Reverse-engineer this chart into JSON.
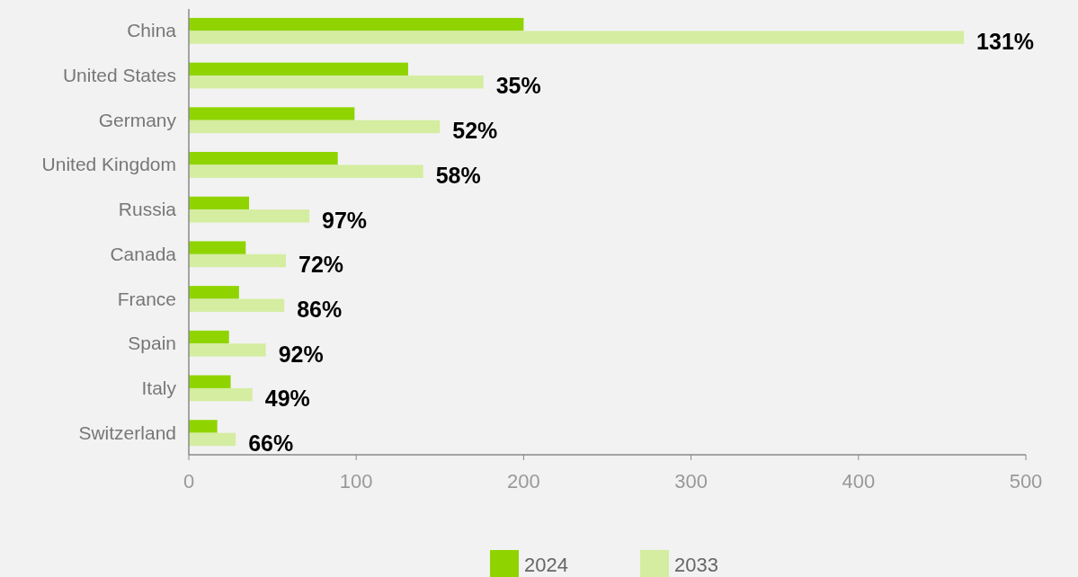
{
  "chart_data": {
    "type": "bar",
    "orientation": "horizontal",
    "categories": [
      "China",
      "United States",
      "Germany",
      "United Kingdom",
      "Russia",
      "Canada",
      "France",
      "Spain",
      "Italy",
      "Switzerland"
    ],
    "series": [
      {
        "name": "2024",
        "color": "#8fd400",
        "values": [
          200,
          131,
          99,
          89,
          36,
          34,
          30,
          24,
          25,
          17
        ]
      },
      {
        "name": "2033",
        "color": "#d4eda0",
        "values": [
          463,
          176,
          150,
          140,
          72,
          58,
          57,
          46,
          38,
          28
        ]
      }
    ],
    "xlim": [
      0,
      500
    ],
    "xticks": [
      0,
      100,
      200,
      300,
      400,
      500
    ],
    "grid": false,
    "legend": "bottom",
    "annotations": [
      {
        "text": "131%",
        "x": 463,
        "y": "China"
      },
      {
        "text": "35%",
        "x": 176,
        "y": "United States"
      },
      {
        "text": "52%",
        "x": 150,
        "y": "Germany"
      },
      {
        "text": "58%",
        "x": 140,
        "y": "United Kingdom"
      },
      {
        "text": "97%",
        "x": 72,
        "y": "Russia"
      },
      {
        "text": "72%",
        "x": 58,
        "y": "Canada"
      },
      {
        "text": "86%",
        "x": 57,
        "y": "France"
      },
      {
        "text": "92%",
        "x": 46,
        "y": "Spain"
      },
      {
        "text": "49%",
        "x": 38,
        "y": "Italy"
      },
      {
        "text": "66%",
        "x": 28,
        "y": "Switzerland"
      }
    ]
  }
}
